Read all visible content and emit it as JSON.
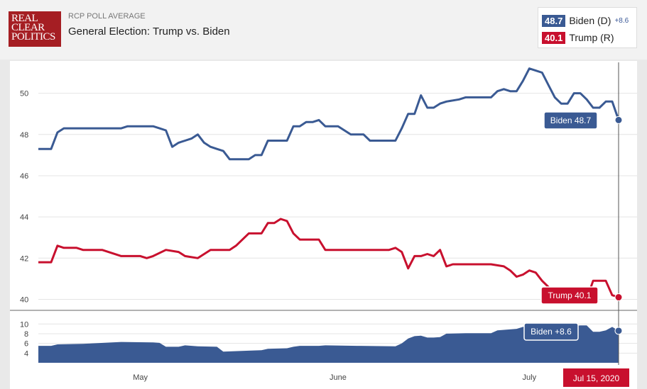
{
  "header": {
    "logo_lines": [
      "REAL",
      "CLEAR",
      "POLITICS"
    ],
    "subtitle": "RCP POLL AVERAGE",
    "title": "General Election: Trump vs. Biden"
  },
  "legend": {
    "biden": {
      "value": "48.7",
      "name": "Biden (D)",
      "spread": "+8.6",
      "color": "#3a5a93"
    },
    "trump": {
      "value": "40.1",
      "name": "Trump (R)",
      "color": "#c8102e"
    }
  },
  "chart_data": {
    "type": "line",
    "x_start": "2020-04-15",
    "x_end": "2020-07-15",
    "x_ticks": [
      {
        "label": "May",
        "date": "2020-05-01"
      },
      {
        "label": "June",
        "date": "2020-06-01"
      },
      {
        "label": "July",
        "date": "2020-07-01"
      }
    ],
    "main_ylim": [
      39.5,
      51.5
    ],
    "main_yticks": [
      40,
      42,
      44,
      46,
      48,
      50
    ],
    "spread_ylim": [
      2,
      11.5
    ],
    "spread_yticks": [
      4,
      6,
      8,
      10
    ],
    "series": [
      {
        "name": "Biden",
        "color": "#3a5a93",
        "points": [
          [
            "2020-04-15",
            47.3
          ],
          [
            "2020-04-17",
            47.3
          ],
          [
            "2020-04-18",
            48.1
          ],
          [
            "2020-04-19",
            48.3
          ],
          [
            "2020-04-22",
            48.3
          ],
          [
            "2020-04-25",
            48.3
          ],
          [
            "2020-04-28",
            48.3
          ],
          [
            "2020-04-29",
            48.4
          ],
          [
            "2020-05-03",
            48.4
          ],
          [
            "2020-05-04",
            48.3
          ],
          [
            "2020-05-05",
            48.2
          ],
          [
            "2020-05-06",
            47.4
          ],
          [
            "2020-05-07",
            47.6
          ],
          [
            "2020-05-08",
            47.7
          ],
          [
            "2020-05-09",
            47.8
          ],
          [
            "2020-05-10",
            48.0
          ],
          [
            "2020-05-11",
            47.6
          ],
          [
            "2020-05-12",
            47.4
          ],
          [
            "2020-05-13",
            47.3
          ],
          [
            "2020-05-14",
            47.2
          ],
          [
            "2020-05-15",
            46.8
          ],
          [
            "2020-05-18",
            46.8
          ],
          [
            "2020-05-19",
            47.0
          ],
          [
            "2020-05-20",
            47.0
          ],
          [
            "2020-05-21",
            47.7
          ],
          [
            "2020-05-24",
            47.7
          ],
          [
            "2020-05-25",
            48.4
          ],
          [
            "2020-05-26",
            48.4
          ],
          [
            "2020-05-27",
            48.6
          ],
          [
            "2020-05-28",
            48.6
          ],
          [
            "2020-05-29",
            48.7
          ],
          [
            "2020-05-30",
            48.4
          ],
          [
            "2020-06-01",
            48.4
          ],
          [
            "2020-06-03",
            48.0
          ],
          [
            "2020-06-05",
            48.0
          ],
          [
            "2020-06-06",
            47.7
          ],
          [
            "2020-06-10",
            47.7
          ],
          [
            "2020-06-11",
            48.3
          ],
          [
            "2020-06-12",
            49.0
          ],
          [
            "2020-06-13",
            49.0
          ],
          [
            "2020-06-14",
            49.9
          ],
          [
            "2020-06-15",
            49.3
          ],
          [
            "2020-06-16",
            49.3
          ],
          [
            "2020-06-17",
            49.5
          ],
          [
            "2020-06-18",
            49.6
          ],
          [
            "2020-06-20",
            49.7
          ],
          [
            "2020-06-21",
            49.8
          ],
          [
            "2020-06-25",
            49.8
          ],
          [
            "2020-06-26",
            50.1
          ],
          [
            "2020-06-27",
            50.2
          ],
          [
            "2020-06-28",
            50.1
          ],
          [
            "2020-06-29",
            50.1
          ],
          [
            "2020-06-30",
            50.6
          ],
          [
            "2020-07-01",
            51.2
          ],
          [
            "2020-07-02",
            51.1
          ],
          [
            "2020-07-03",
            51.0
          ],
          [
            "2020-07-04",
            50.4
          ],
          [
            "2020-07-05",
            49.8
          ],
          [
            "2020-07-06",
            49.5
          ],
          [
            "2020-07-07",
            49.5
          ],
          [
            "2020-07-08",
            50.0
          ],
          [
            "2020-07-09",
            50.0
          ],
          [
            "2020-07-10",
            49.7
          ],
          [
            "2020-07-11",
            49.3
          ],
          [
            "2020-07-12",
            49.3
          ],
          [
            "2020-07-13",
            49.6
          ],
          [
            "2020-07-14",
            49.6
          ],
          [
            "2020-07-15",
            48.7
          ]
        ]
      },
      {
        "name": "Trump",
        "color": "#c8102e",
        "points": [
          [
            "2020-04-15",
            41.8
          ],
          [
            "2020-04-17",
            41.8
          ],
          [
            "2020-04-18",
            42.6
          ],
          [
            "2020-04-19",
            42.5
          ],
          [
            "2020-04-21",
            42.5
          ],
          [
            "2020-04-22",
            42.4
          ],
          [
            "2020-04-25",
            42.4
          ],
          [
            "2020-04-28",
            42.1
          ],
          [
            "2020-05-01",
            42.1
          ],
          [
            "2020-05-02",
            42.0
          ],
          [
            "2020-05-03",
            42.1
          ],
          [
            "2020-05-05",
            42.4
          ],
          [
            "2020-05-07",
            42.3
          ],
          [
            "2020-05-08",
            42.1
          ],
          [
            "2020-05-10",
            42.0
          ],
          [
            "2020-05-12",
            42.4
          ],
          [
            "2020-05-15",
            42.4
          ],
          [
            "2020-05-16",
            42.6
          ],
          [
            "2020-05-18",
            43.2
          ],
          [
            "2020-05-20",
            43.2
          ],
          [
            "2020-05-21",
            43.7
          ],
          [
            "2020-05-22",
            43.7
          ],
          [
            "2020-05-23",
            43.9
          ],
          [
            "2020-05-24",
            43.8
          ],
          [
            "2020-05-25",
            43.2
          ],
          [
            "2020-05-26",
            42.9
          ],
          [
            "2020-05-29",
            42.9
          ],
          [
            "2020-05-30",
            42.4
          ],
          [
            "2020-06-04",
            42.4
          ],
          [
            "2020-06-06",
            42.4
          ],
          [
            "2020-06-09",
            42.4
          ],
          [
            "2020-06-10",
            42.5
          ],
          [
            "2020-06-11",
            42.3
          ],
          [
            "2020-06-12",
            41.5
          ],
          [
            "2020-06-13",
            42.1
          ],
          [
            "2020-06-14",
            42.1
          ],
          [
            "2020-06-15",
            42.2
          ],
          [
            "2020-06-16",
            42.1
          ],
          [
            "2020-06-17",
            42.4
          ],
          [
            "2020-06-18",
            41.6
          ],
          [
            "2020-06-19",
            41.7
          ],
          [
            "2020-06-25",
            41.7
          ],
          [
            "2020-06-27",
            41.6
          ],
          [
            "2020-06-28",
            41.4
          ],
          [
            "2020-06-29",
            41.1
          ],
          [
            "2020-06-30",
            41.2
          ],
          [
            "2020-07-01",
            41.4
          ],
          [
            "2020-07-02",
            41.3
          ],
          [
            "2020-07-03",
            40.9
          ],
          [
            "2020-07-04",
            40.6
          ],
          [
            "2020-07-05",
            40.2
          ],
          [
            "2020-07-06",
            40.1
          ],
          [
            "2020-07-07",
            40.3
          ],
          [
            "2020-07-08",
            40.4
          ],
          [
            "2020-07-09",
            40.3
          ],
          [
            "2020-07-10",
            40.0
          ],
          [
            "2020-07-11",
            40.9
          ],
          [
            "2020-07-12",
            40.9
          ],
          [
            "2020-07-13",
            40.9
          ],
          [
            "2020-07-14",
            40.2
          ],
          [
            "2020-07-15",
            40.1
          ]
        ]
      },
      {
        "name": "Biden +",
        "color": "#3a5a93",
        "points": [
          [
            "2020-04-15",
            5.5
          ],
          [
            "2020-04-17",
            5.5
          ],
          [
            "2020-04-18",
            5.8
          ],
          [
            "2020-04-22",
            5.9
          ],
          [
            "2020-04-28",
            6.3
          ],
          [
            "2020-05-03",
            6.2
          ],
          [
            "2020-05-04",
            6.1
          ],
          [
            "2020-05-05",
            5.3
          ],
          [
            "2020-05-07",
            5.3
          ],
          [
            "2020-05-08",
            5.6
          ],
          [
            "2020-05-10",
            5.4
          ],
          [
            "2020-05-13",
            5.3
          ],
          [
            "2020-05-14",
            4.3
          ],
          [
            "2020-05-18",
            4.5
          ],
          [
            "2020-05-20",
            4.6
          ],
          [
            "2020-05-21",
            4.9
          ],
          [
            "2020-05-24",
            5.0
          ],
          [
            "2020-05-25",
            5.3
          ],
          [
            "2020-05-26",
            5.5
          ],
          [
            "2020-05-29",
            5.5
          ],
          [
            "2020-05-30",
            5.6
          ],
          [
            "2020-06-04",
            5.5
          ],
          [
            "2020-06-10",
            5.4
          ],
          [
            "2020-06-11",
            6.0
          ],
          [
            "2020-06-12",
            7.0
          ],
          [
            "2020-06-13",
            7.5
          ],
          [
            "2020-06-14",
            7.6
          ],
          [
            "2020-06-15",
            7.2
          ],
          [
            "2020-06-16",
            7.2
          ],
          [
            "2020-06-17",
            7.3
          ],
          [
            "2020-06-18",
            8.0
          ],
          [
            "2020-06-21",
            8.1
          ],
          [
            "2020-06-25",
            8.1
          ],
          [
            "2020-06-26",
            8.7
          ],
          [
            "2020-06-29",
            9.0
          ],
          [
            "2020-06-30",
            9.4
          ],
          [
            "2020-07-01",
            9.8
          ],
          [
            "2020-07-02",
            9.8
          ],
          [
            "2020-07-03",
            10.1
          ],
          [
            "2020-07-04",
            9.8
          ],
          [
            "2020-07-05",
            9.6
          ],
          [
            "2020-07-06",
            9.4
          ],
          [
            "2020-07-07",
            9.2
          ],
          [
            "2020-07-08",
            9.6
          ],
          [
            "2020-07-09",
            9.7
          ],
          [
            "2020-07-10",
            9.7
          ],
          [
            "2020-07-11",
            8.4
          ],
          [
            "2020-07-12",
            8.4
          ],
          [
            "2020-07-13",
            8.7
          ],
          [
            "2020-07-14",
            9.4
          ],
          [
            "2020-07-15",
            8.6
          ]
        ]
      }
    ],
    "callouts": {
      "biden": "Biden 48.7",
      "trump": "Trump 40.1",
      "spread": "Biden +8.6",
      "date": "Jul 15, 2020"
    }
  }
}
